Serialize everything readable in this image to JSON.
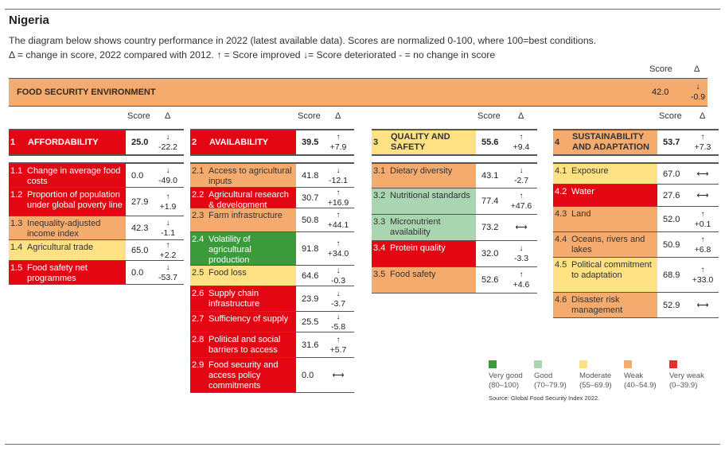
{
  "title": "Nigeria",
  "description": [
    "The diagram below shows country performance in 2022 (latest available data). Scores are normalized 0-100, where 100=best conditions.",
    "Δ = change in score, 2022 compared with 2012. ↑ = Score improved ↓= Score deteriorated  - = no change in score"
  ],
  "headers": {
    "score": "Score",
    "delta": "Δ"
  },
  "overall": {
    "label": "FOOD SECURITY ENVIRONMENT",
    "score": "42.0",
    "arrow": "↓",
    "delta": "-0.9",
    "rating": "weak"
  },
  "pillars": [
    {
      "num": "1",
      "label": "AFFORDABILITY",
      "score": "25.0",
      "arrow": "↓",
      "delta": "-22.2",
      "rating": "vweak",
      "indicators": [
        {
          "num": "1.1",
          "label": "Change in average food costs",
          "score": "0.0",
          "arrow": "↓",
          "delta": "-49.0",
          "rating": "vweak"
        },
        {
          "num": "1.2",
          "label": "Proportion of population under global poverty line",
          "score": "27.9",
          "arrow": "↑",
          "delta": "+1.9",
          "rating": "vweak"
        },
        {
          "num": "1.3",
          "label": "Inequality-adjusted income index",
          "score": "42.3",
          "arrow": "↓",
          "delta": "-1.1",
          "rating": "weak"
        },
        {
          "num": "1.4",
          "label": "Agricultural trade",
          "score": "65.0",
          "arrow": "↑",
          "delta": "+2.2",
          "rating": "moderate"
        },
        {
          "num": "1.5",
          "label": "Food safety net programmes",
          "score": "0.0",
          "arrow": "↓",
          "delta": "-53.7",
          "rating": "vweak"
        }
      ]
    },
    {
      "num": "2",
      "label": "AVAILABILITY",
      "score": "39.5",
      "arrow": "↑",
      "delta": "+7.9",
      "rating": "vweak",
      "indicators": [
        {
          "num": "2.1",
          "label": "Access to agricultural inputs",
          "score": "41.8",
          "arrow": "↓",
          "delta": "-12.1",
          "rating": "weak"
        },
        {
          "num": "2.2",
          "label": "Agricultural research & development",
          "score": "30.7",
          "arrow": "↑",
          "delta": "+16.9",
          "rating": "vweak"
        },
        {
          "num": "2.3",
          "label": "Farm infrastructure",
          "score": "50.8",
          "arrow": "↑",
          "delta": "+44.1",
          "rating": "weak"
        },
        {
          "num": "2.4",
          "label": "Volatility of agricultural production",
          "score": "91.8",
          "arrow": "↑",
          "delta": "+34.0",
          "rating": "vgood"
        },
        {
          "num": "2.5",
          "label": "Food loss",
          "score": "64.6",
          "arrow": "↓",
          "delta": "-0.3",
          "rating": "moderate"
        },
        {
          "num": "2.6",
          "label": "Supply chain infrastructure",
          "score": "23.9",
          "arrow": "↓",
          "delta": "-3.7",
          "rating": "vweak"
        },
        {
          "num": "2.7",
          "label": "Sufficiency of supply",
          "score": "25.5",
          "arrow": "↓",
          "delta": "-5.8",
          "rating": "vweak"
        },
        {
          "num": "2.8",
          "label": "Political and social barriers to access",
          "score": "31.6",
          "arrow": "↑",
          "delta": "+5.7",
          "rating": "vweak"
        },
        {
          "num": "2.9",
          "label": "Food security and access policy commitments",
          "score": "0.0",
          "arrow": "",
          "delta": "⟷",
          "rating": "vweak"
        }
      ]
    },
    {
      "num": "3",
      "label": "QUALITY AND SAFETY",
      "score": "55.6",
      "arrow": "↑",
      "delta": "+9.4",
      "rating": "moderate",
      "indicators": [
        {
          "num": "3.1",
          "label": "Dietary diversity",
          "score": "43.1",
          "arrow": "↓",
          "delta": "-2.7",
          "rating": "weak"
        },
        {
          "num": "3.2",
          "label": "Nutritional standards",
          "score": "77.4",
          "arrow": "↑",
          "delta": "+47.6",
          "rating": "good"
        },
        {
          "num": "3.3",
          "label": "Micronutrient availability",
          "score": "73.2",
          "arrow": "",
          "delta": "⟷",
          "rating": "good"
        },
        {
          "num": "3.4",
          "label": "Protein quality",
          "score": "32.0",
          "arrow": "↓",
          "delta": "-3.3",
          "rating": "vweak"
        },
        {
          "num": "3.5",
          "label": "Food safety",
          "score": "52.6",
          "arrow": "↑",
          "delta": "+4.6",
          "rating": "weak"
        }
      ]
    },
    {
      "num": "4",
      "label": "SUSTAINABILITY AND ADAPTATION",
      "score": "53.7",
      "arrow": "↑",
      "delta": "+7.3",
      "rating": "weak",
      "indicators": [
        {
          "num": "4.1",
          "label": "Exposure",
          "score": "67.0",
          "arrow": "",
          "delta": "⟷",
          "rating": "moderate"
        },
        {
          "num": "4.2",
          "label": "Water",
          "score": "27.6",
          "arrow": "",
          "delta": "⟷",
          "rating": "vweak"
        },
        {
          "num": "4.3",
          "label": "Land",
          "score": "52.0",
          "arrow": "↑",
          "delta": "+0.1",
          "rating": "weak"
        },
        {
          "num": "4.4",
          "label": "Oceans, rivers and lakes",
          "score": "50.9",
          "arrow": "↑",
          "delta": "+6.8",
          "rating": "weak"
        },
        {
          "num": "4.5",
          "label": "Political commitment to adaptation",
          "score": "68.9",
          "arrow": "↑",
          "delta": "+33.0",
          "rating": "moderate"
        },
        {
          "num": "4.6",
          "label": "Disaster risk management",
          "score": "52.9",
          "arrow": "",
          "delta": "⟷",
          "rating": "weak"
        }
      ]
    }
  ],
  "legend": [
    {
      "label": "Very good",
      "range": "(80–100)",
      "color": "#3a9a3c"
    },
    {
      "label": "Good",
      "range": "(70–79.9)",
      "color": "#a9d5b1"
    },
    {
      "label": "Moderate",
      "range": "(55–69.9)",
      "color": "#fde182"
    },
    {
      "label": "Weak",
      "range": "(40–54.9)",
      "color": "#f5aa6e"
    },
    {
      "label": "Very weak",
      "range": "(0–39.9)",
      "color": "#e3302a"
    }
  ],
  "source": "Source: Global Food Security Index 2022."
}
